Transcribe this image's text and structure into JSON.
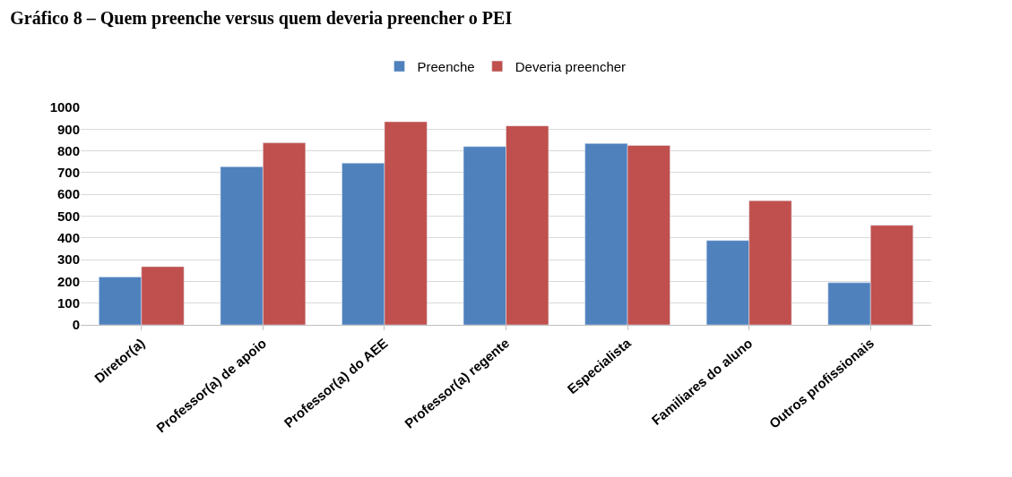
{
  "chart_data": {
    "type": "bar",
    "title": "Gráfico 8 – Quem preenche versus quem deveria preencher o PEI",
    "categories": [
      "Diretor(a)",
      "Professor(a) de apoio",
      "Professor(a) do AEE",
      "Professor(a) regente",
      "Especialista",
      "Familiares do aluno",
      "Outros profissionais"
    ],
    "series": [
      {
        "name": "Preenche",
        "color": "#4f81bd",
        "values": [
          220,
          727,
          744,
          820,
          834,
          388,
          194
        ]
      },
      {
        "name": "Deveria preencher",
        "color": "#c0504d",
        "values": [
          268,
          837,
          934,
          915,
          825,
          571,
          458
        ]
      }
    ],
    "ylim": [
      0,
      1000
    ],
    "yticks": [
      0,
      100,
      200,
      300,
      400,
      500,
      600,
      700,
      800,
      900,
      1000
    ],
    "grid": "y",
    "legend": "top"
  }
}
